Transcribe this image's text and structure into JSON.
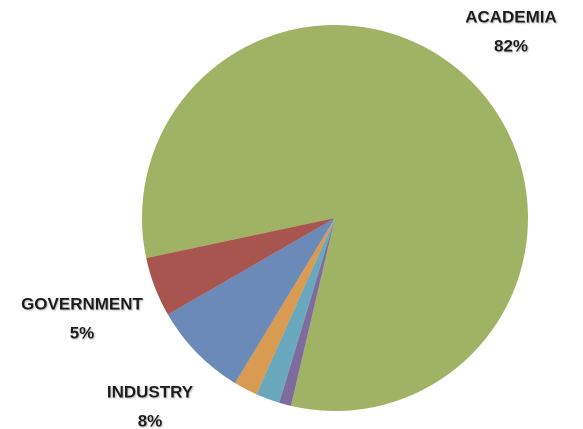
{
  "chart_data": {
    "type": "pie",
    "categories": [
      "ACADEMIA",
      null,
      null,
      null,
      "INDUSTRY",
      "GOVERNMENT"
    ],
    "values": [
      82,
      1,
      2,
      2,
      8,
      5
    ],
    "value_labels": [
      "82%",
      null,
      null,
      null,
      "8%",
      "5%"
    ],
    "colors": [
      "#a0b264",
      "#7f6b9d",
      "#6aa8bd",
      "#d99a52",
      "#6b8ab8",
      "#a9554f"
    ]
  }
}
